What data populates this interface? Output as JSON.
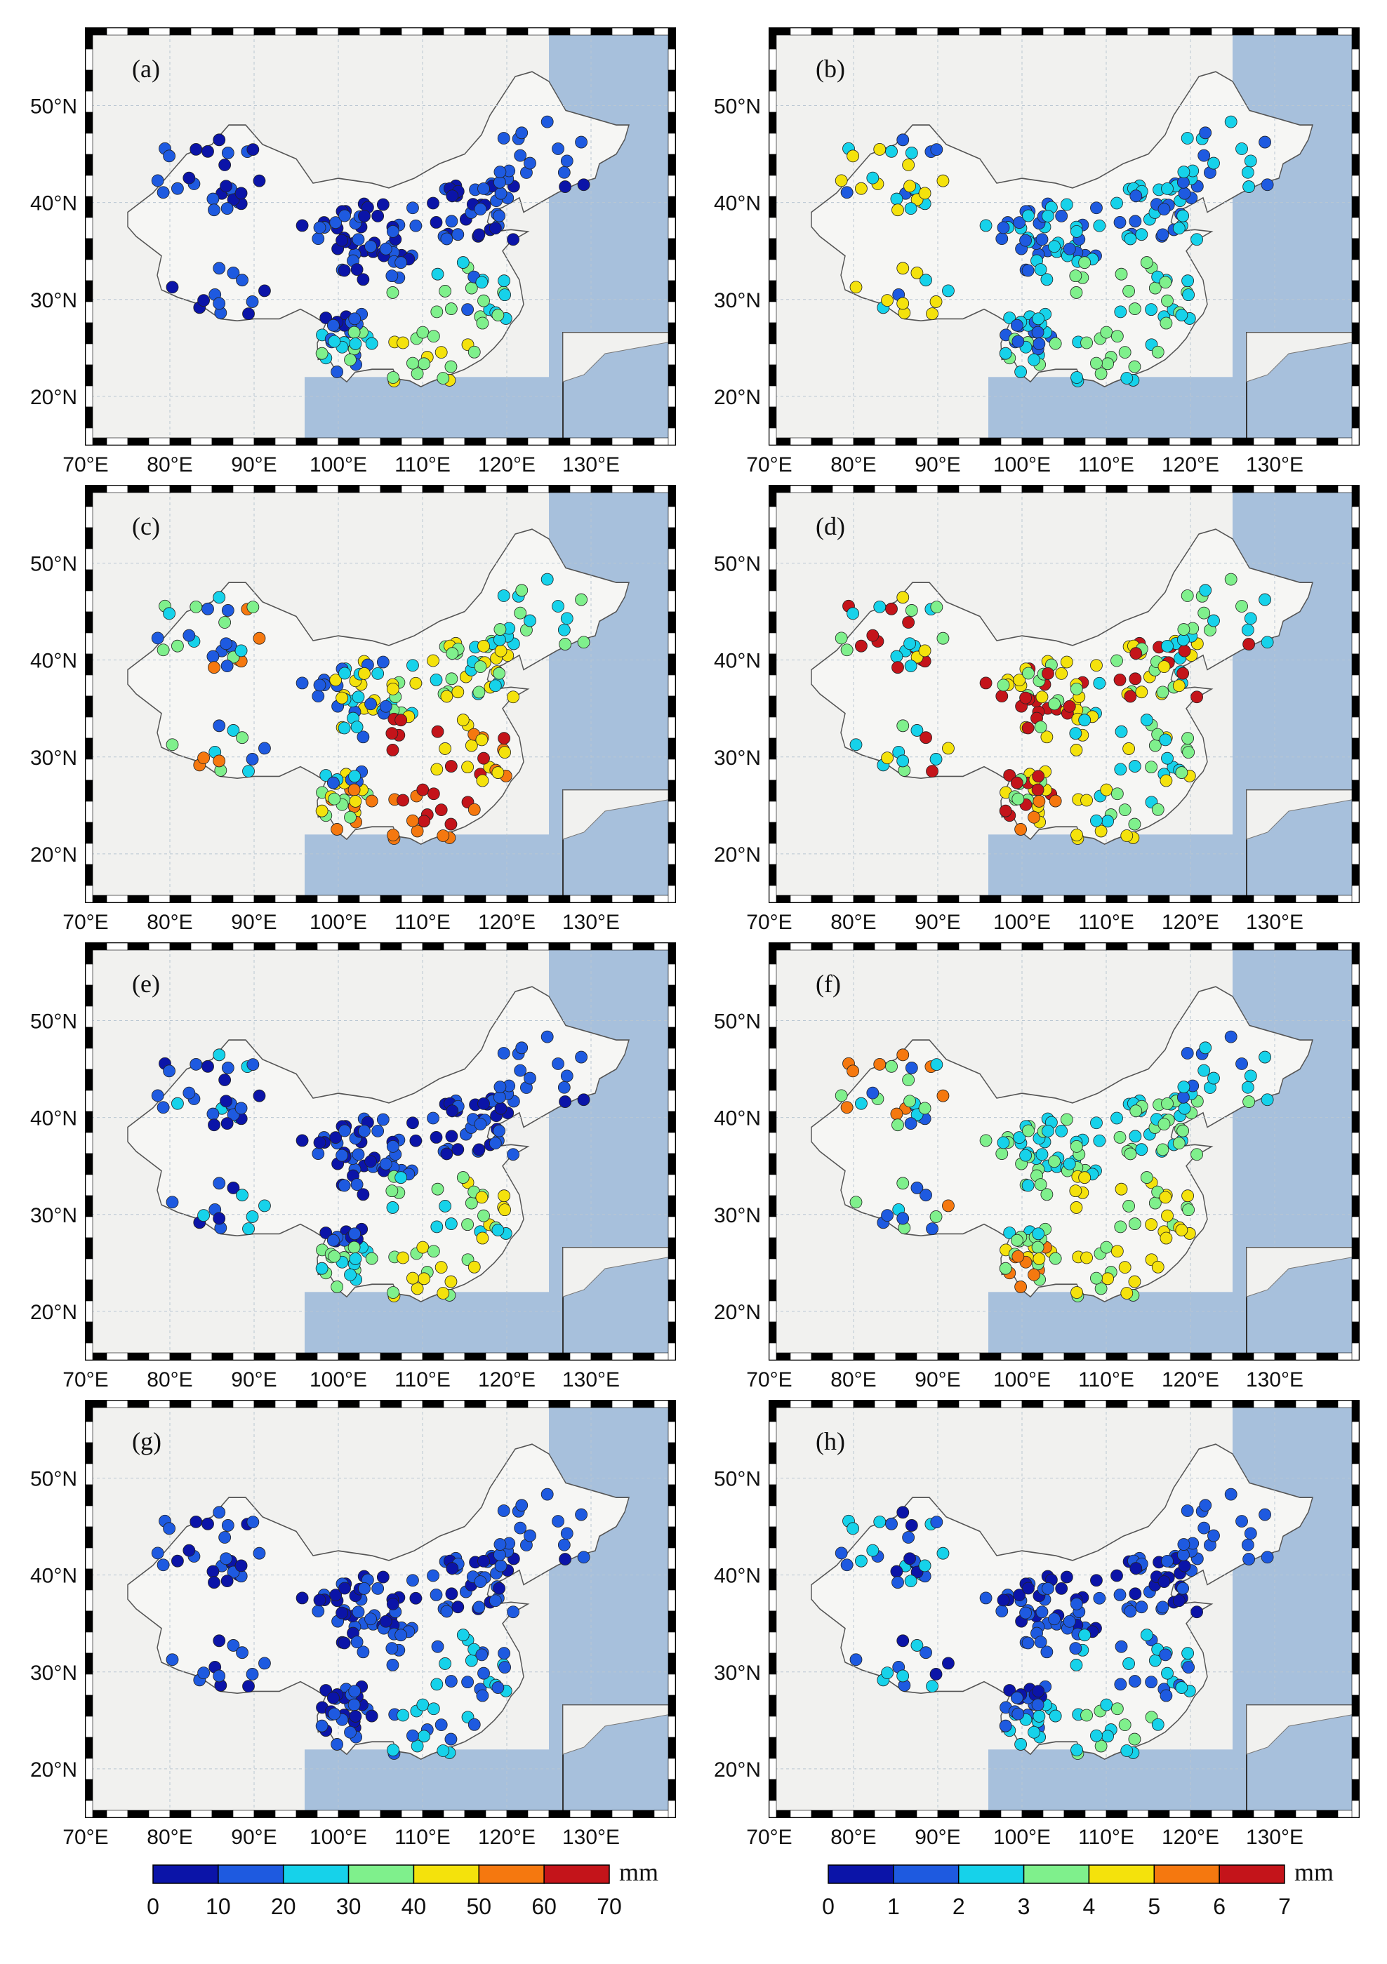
{
  "figure": {
    "lon_ticks": [
      "70°E",
      "80°E",
      "90°E",
      "100°E",
      "110°E",
      "120°E",
      "130°E"
    ],
    "lat_ticks": [
      "20°N",
      "30°N",
      "40°N",
      "50°N"
    ],
    "lon_range": [
      70,
      140
    ],
    "lat_range": [
      15,
      58
    ],
    "land_color": "#f1f1ef",
    "ocean_color": "#a7c0dc",
    "border_color": "#555555",
    "panels": [
      {
        "id": "a",
        "label": "(a)",
        "scale": "left",
        "pattern": "a"
      },
      {
        "id": "b",
        "label": "(b)",
        "scale": "right",
        "pattern": "b"
      },
      {
        "id": "c",
        "label": "(c)",
        "scale": "left",
        "pattern": "c"
      },
      {
        "id": "d",
        "label": "(d)",
        "scale": "right",
        "pattern": "d"
      },
      {
        "id": "e",
        "label": "(e)",
        "scale": "left",
        "pattern": "e"
      },
      {
        "id": "f",
        "label": "(f)",
        "scale": "right",
        "pattern": "f"
      },
      {
        "id": "g",
        "label": "(g)",
        "scale": "left",
        "pattern": "g"
      },
      {
        "id": "h",
        "label": "(h)",
        "scale": "right",
        "pattern": "h"
      }
    ],
    "colorbars": [
      {
        "id": "left",
        "unit": "mm",
        "labels": [
          "0",
          "10",
          "20",
          "30",
          "40",
          "50",
          "60",
          "70"
        ]
      },
      {
        "id": "right",
        "unit": "mm",
        "labels": [
          "0",
          "1",
          "2",
          "3",
          "4",
          "5",
          "6",
          "7"
        ]
      }
    ],
    "bin_colors": [
      "#0b14a8",
      "#1e5ae0",
      "#16d2ea",
      "#7ff08c",
      "#f4e20c",
      "#f5780f",
      "#c4141a"
    ]
  }
}
